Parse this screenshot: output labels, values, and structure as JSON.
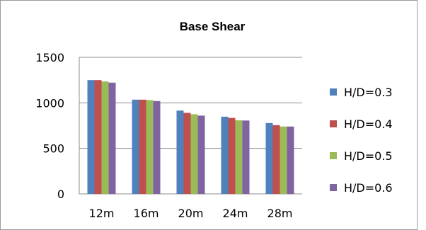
{
  "chart_data": {
    "type": "bar",
    "title": "Base Shear",
    "xlabel": "",
    "ylabel": "",
    "categories": [
      "12m",
      "16m",
      "20m",
      "24m",
      "28m"
    ],
    "ylim": [
      0,
      1500
    ],
    "yticks": [
      "0",
      "500",
      "1000",
      "1500"
    ],
    "grid": true,
    "legend_position": "right",
    "series": [
      {
        "name": "H/D=0.3",
        "color": "#4F81BD",
        "values": [
          1250,
          1035,
          915,
          848,
          778
        ]
      },
      {
        "name": "H/D=0.4",
        "color": "#C0504D",
        "values": [
          1250,
          1035,
          890,
          835,
          755
        ]
      },
      {
        "name": "H/D=0.5",
        "color": "#9BBB59",
        "values": [
          1235,
          1030,
          875,
          808,
          740
        ]
      },
      {
        "name": "H/D=0.6",
        "color": "#8064A2",
        "values": [
          1222,
          1020,
          860,
          806,
          740
        ]
      }
    ]
  }
}
